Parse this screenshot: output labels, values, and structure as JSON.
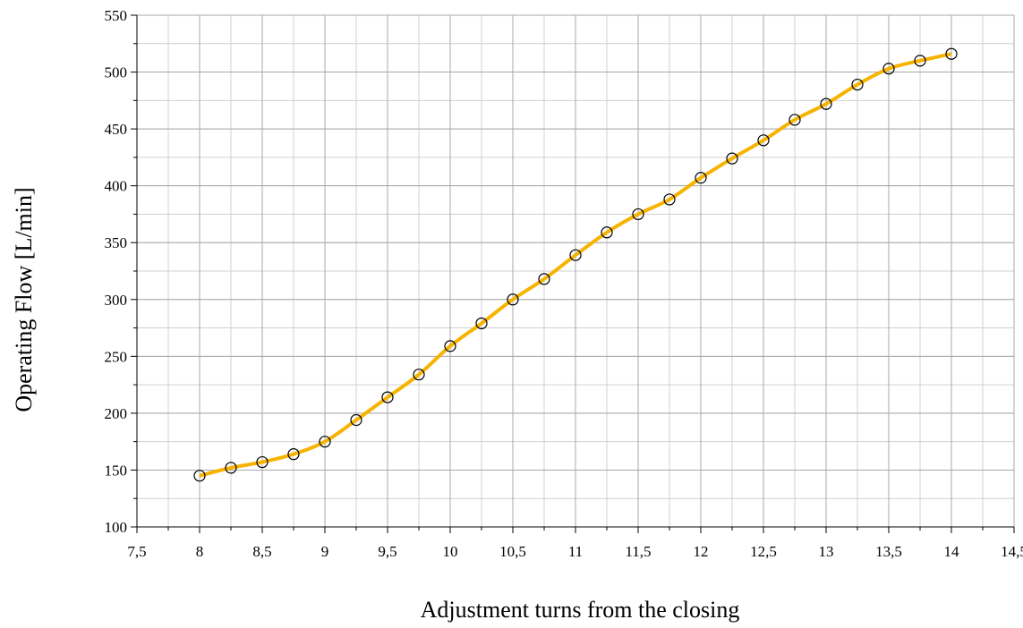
{
  "chart_data": {
    "type": "line",
    "title": "",
    "xlabel": "Adjustment turns from the closing",
    "ylabel": "Operating Flow [L/min]",
    "xlim": [
      7.5,
      14.5
    ],
    "ylim": [
      100,
      550
    ],
    "x_major_step": 0.5,
    "x_minor_step": 0.25,
    "y_major_step": 50,
    "y_minor_step": 25,
    "grid": true,
    "decimal_separator": ",",
    "line_color": "#f6b400",
    "marker": "open-circle",
    "series": [
      {
        "x": [
          8,
          8.25,
          8.5,
          8.75,
          9,
          9.25,
          9.5,
          9.75,
          10,
          10.25,
          10.5,
          10.75,
          11,
          11.25,
          11.5,
          11.75,
          12,
          12.25,
          12.5,
          12.75,
          13,
          13.25,
          13.5,
          13.75,
          14
        ],
        "y": [
          145,
          152,
          157,
          164,
          175,
          194,
          214,
          234,
          259,
          279,
          300,
          318,
          339,
          359,
          375,
          388,
          407,
          424,
          440,
          458,
          472,
          489,
          503,
          510,
          516
        ]
      }
    ]
  }
}
